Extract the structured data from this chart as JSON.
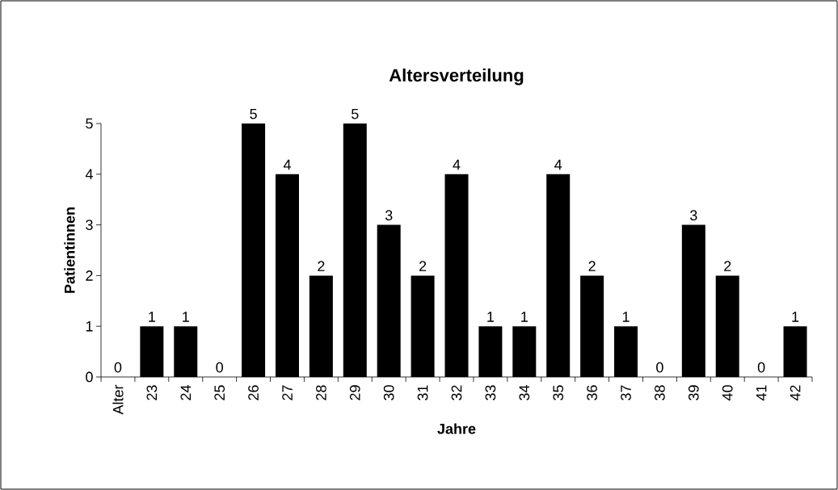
{
  "chart_data": {
    "type": "bar",
    "title": "Altersverteilung",
    "xlabel": "Jahre",
    "ylabel": "Patientinnen",
    "categories": [
      "Alter",
      "23",
      "24",
      "25",
      "26",
      "27",
      "28",
      "29",
      "30",
      "31",
      "32",
      "33",
      "34",
      "35",
      "36",
      "37",
      "38",
      "39",
      "40",
      "41",
      "42"
    ],
    "values": [
      0,
      1,
      1,
      0,
      5,
      4,
      2,
      5,
      3,
      2,
      4,
      1,
      1,
      4,
      2,
      1,
      0,
      3,
      2,
      0,
      1
    ],
    "color": "#000000",
    "ylim": [
      0,
      5
    ],
    "yticks": [
      0,
      1,
      2,
      3,
      4,
      5
    ],
    "data_labels": true
  }
}
